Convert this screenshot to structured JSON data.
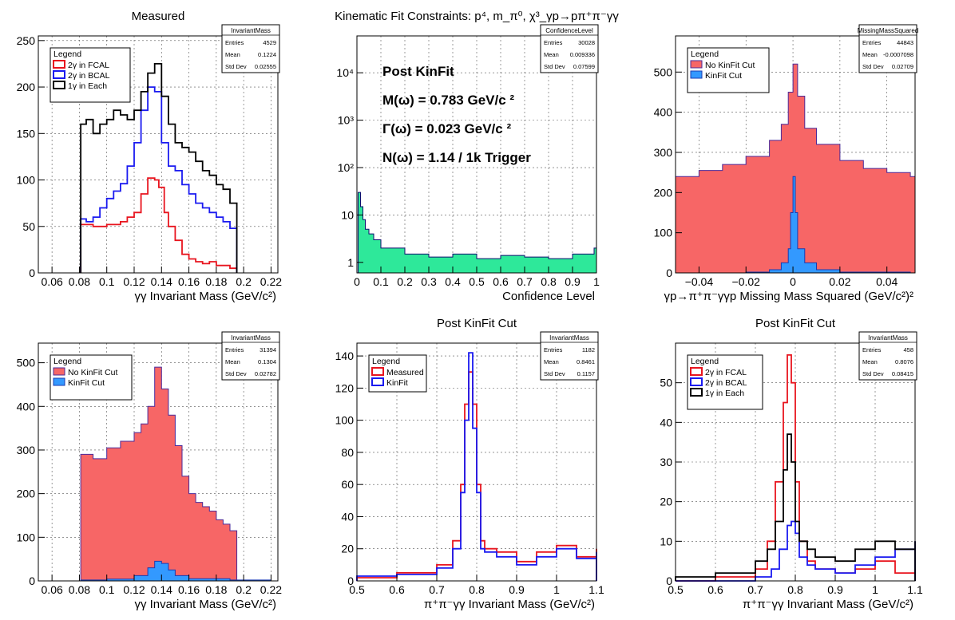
{
  "chart_data": [
    {
      "type": "histogram",
      "title": "Measured",
      "xlabel": "γγ Invariant Mass (GeV/c²)",
      "ylabel": "",
      "xlim": [
        0.05,
        0.225
      ],
      "ylim": [
        0,
        255
      ],
      "xticks": [
        0.06,
        0.08,
        0.1,
        0.12,
        0.14,
        0.16,
        0.18,
        0.2,
        0.22
      ],
      "xticklabels": [
        "0.06",
        "0.08",
        "0.1",
        "0.12",
        "0.14",
        "0.16",
        "0.18",
        "0.2",
        "0.22"
      ],
      "yticks": [
        0,
        50,
        100,
        150,
        200,
        250
      ],
      "grid": true,
      "legend": {
        "title": "Legend",
        "position": "top-left"
      },
      "stats": {
        "name": "InvariantMass",
        "rows": [
          [
            "Entries",
            "4529"
          ],
          [
            "Mean",
            "0.1224"
          ],
          [
            "Std Dev",
            "0.02555"
          ]
        ]
      },
      "series": [
        {
          "name": "2γ in FCAL",
          "color": "#e8141e",
          "fill": "none",
          "x": [
            0.081,
            0.09,
            0.1,
            0.11,
            0.115,
            0.12,
            0.125,
            0.13,
            0.135,
            0.138,
            0.142,
            0.145,
            0.15,
            0.155,
            0.16,
            0.165,
            0.17,
            0.175,
            0.18,
            0.185,
            0.19
          ],
          "y": [
            52,
            50,
            52,
            55,
            60,
            65,
            85,
            102,
            100,
            92,
            65,
            50,
            35,
            20,
            15,
            12,
            10,
            12,
            8,
            8,
            5
          ]
        },
        {
          "name": "2γ in BCAL",
          "color": "#1a1af0",
          "fill": "none",
          "x": [
            0.081,
            0.085,
            0.09,
            0.095,
            0.1,
            0.105,
            0.11,
            0.115,
            0.12,
            0.125,
            0.13,
            0.135,
            0.14,
            0.145,
            0.15,
            0.155,
            0.16,
            0.165,
            0.17,
            0.175,
            0.18,
            0.185,
            0.19
          ],
          "y": [
            58,
            55,
            60,
            70,
            80,
            88,
            96,
            115,
            140,
            175,
            200,
            195,
            140,
            115,
            110,
            95,
            85,
            75,
            70,
            65,
            60,
            55,
            48
          ]
        },
        {
          "name": "1γ in Each",
          "color": "#000000",
          "fill": "none",
          "x": [
            0.081,
            0.085,
            0.09,
            0.095,
            0.1,
            0.105,
            0.11,
            0.115,
            0.12,
            0.125,
            0.13,
            0.135,
            0.14,
            0.145,
            0.15,
            0.155,
            0.16,
            0.165,
            0.17,
            0.175,
            0.18,
            0.185,
            0.19
          ],
          "y": [
            160,
            165,
            150,
            160,
            165,
            175,
            170,
            165,
            175,
            195,
            215,
            225,
            190,
            160,
            140,
            135,
            130,
            120,
            110,
            105,
            95,
            90,
            75
          ]
        }
      ]
    },
    {
      "type": "histogram",
      "title": "Kinematic Fit Constraints: p⁴, m_π⁰, χ³_γp→pπ⁺π⁻γγ",
      "xlabel": "Confidence Level",
      "ylabel": "",
      "xlim": [
        0,
        1
      ],
      "ylim": [
        0.6,
        60000
      ],
      "log_y": true,
      "xticks": [
        0,
        0.1,
        0.2,
        0.3,
        0.4,
        0.5,
        0.6,
        0.7,
        0.8,
        0.9,
        1
      ],
      "xticklabels": [
        "0",
        "0.1",
        "0.2",
        "0.3",
        "0.4",
        "0.5",
        "0.6",
        "0.7",
        "0.8",
        "0.9",
        "1"
      ],
      "yticks": [
        1,
        10,
        100,
        1000,
        10000
      ],
      "yticklabels": [
        "1",
        "10",
        "10²",
        "10³",
        "10⁴"
      ],
      "grid": true,
      "stats": {
        "name": "ConfidenceLevel",
        "rows": [
          [
            "Entries",
            "30028"
          ],
          [
            "Mean",
            "0.009336"
          ],
          [
            "Std Dev",
            "0.07599"
          ]
        ]
      },
      "annotations": [
        "Post KinFit",
        "M(ω) = 0.783 GeV/c ²",
        "Γ(ω) = 0.023 GeV/c ²",
        "N(ω) = 1.14 / 1k Trigger"
      ],
      "series": [
        {
          "name": "",
          "color": "#0d0d6e",
          "fill": "#2ee89a",
          "x": [
            0.005,
            0.015,
            0.025,
            0.035,
            0.05,
            0.07,
            0.1,
            0.15,
            0.2,
            0.3,
            0.4,
            0.5,
            0.6,
            0.7,
            0.8,
            0.9,
            0.99
          ],
          "y": [
            30,
            15,
            8,
            5,
            4,
            3,
            2,
            2,
            1.5,
            1.3,
            1.5,
            1.2,
            1.4,
            1.3,
            1.2,
            1.5,
            2
          ]
        }
      ]
    },
    {
      "type": "histogram",
      "title": "",
      "xlabel": "γp→π⁺π⁻γγp Missing Mass Squared (GeV/c²)²",
      "ylabel": "",
      "xlim": [
        -0.05,
        0.052
      ],
      "ylim": [
        0,
        590
      ],
      "xticks": [
        -0.04,
        -0.02,
        0,
        0.02,
        0.04
      ],
      "xticklabels": [
        "−0.04",
        "−0.02",
        "0",
        "0.02",
        "0.04"
      ],
      "yticks": [
        0,
        100,
        200,
        300,
        400,
        500
      ],
      "grid": true,
      "legend": {
        "title": "Legend",
        "position": "top-left"
      },
      "stats": {
        "name": "MissingMassSquared",
        "rows": [
          [
            "Entries",
            "44843"
          ],
          [
            "Mean",
            "-0.0007098"
          ],
          [
            "Std Dev",
            "0.02709"
          ]
        ]
      },
      "series": [
        {
          "name": "No KinFit Cut",
          "color": "#4a2a9a",
          "fill": "#f76666",
          "x": [
            -0.05,
            -0.04,
            -0.03,
            -0.02,
            -0.01,
            -0.005,
            -0.002,
            0,
            0.002,
            0.005,
            0.01,
            0.02,
            0.03,
            0.04,
            0.05
          ],
          "y": [
            240,
            255,
            270,
            290,
            330,
            370,
            450,
            520,
            440,
            360,
            320,
            280,
            260,
            250,
            240
          ]
        },
        {
          "name": "KinFit Cut",
          "color": "#1a3ab0",
          "fill": "#3399ff",
          "x": [
            -0.05,
            -0.02,
            -0.01,
            -0.005,
            -0.002,
            -0.001,
            0,
            0.001,
            0.002,
            0.005,
            0.01,
            0.02,
            0.05
          ],
          "y": [
            0,
            2,
            8,
            25,
            60,
            150,
            240,
            150,
            60,
            25,
            8,
            2,
            0
          ]
        }
      ]
    },
    {
      "type": "histogram",
      "title": "",
      "xlabel": "γγ Invariant Mass (GeV/c²)",
      "ylabel": "",
      "xlim": [
        0.05,
        0.225
      ],
      "ylim": [
        0,
        545
      ],
      "xticks": [
        0.06,
        0.08,
        0.1,
        0.12,
        0.14,
        0.16,
        0.18,
        0.2,
        0.22
      ],
      "xticklabels": [
        "0.06",
        "0.08",
        "0.1",
        "0.12",
        "0.14",
        "0.16",
        "0.18",
        "0.2",
        "0.22"
      ],
      "yticks": [
        0,
        100,
        200,
        300,
        400,
        500
      ],
      "grid": true,
      "legend": {
        "title": "Legend",
        "position": "top-left"
      },
      "stats": {
        "name": "InvariantMass",
        "rows": [
          [
            "Entries",
            "31394"
          ],
          [
            "Mean",
            "0.1304"
          ],
          [
            "Std Dev",
            "0.02782"
          ]
        ]
      },
      "series": [
        {
          "name": "No KinFit Cut",
          "color": "#4a2a9a",
          "fill": "#f76666",
          "x": [
            0.081,
            0.09,
            0.1,
            0.11,
            0.12,
            0.125,
            0.13,
            0.135,
            0.14,
            0.145,
            0.15,
            0.155,
            0.16,
            0.165,
            0.17,
            0.175,
            0.18,
            0.185,
            0.19
          ],
          "y": [
            290,
            280,
            305,
            320,
            340,
            360,
            400,
            490,
            440,
            380,
            310,
            240,
            200,
            180,
            170,
            160,
            140,
            130,
            115
          ]
        },
        {
          "name": "KinFit Cut",
          "color": "#1a3ab0",
          "fill": "#3399ff",
          "x": [
            0.081,
            0.1,
            0.12,
            0.13,
            0.135,
            0.14,
            0.145,
            0.15,
            0.16,
            0.19
          ],
          "y": [
            2,
            4,
            12,
            30,
            45,
            40,
            25,
            12,
            5,
            2
          ]
        }
      ]
    },
    {
      "type": "histogram",
      "title": "Post KinFit Cut",
      "xlabel": "π⁺π⁻γγ Invariant Mass (GeV/c²)",
      "ylabel": "",
      "xlim": [
        0.5,
        1.1
      ],
      "ylim": [
        0,
        148
      ],
      "xticks": [
        0.5,
        0.6,
        0.7,
        0.8,
        0.9,
        1,
        1.1
      ],
      "xticklabels": [
        "0.5",
        "0.6",
        "0.7",
        "0.8",
        "0.9",
        "1",
        "1.1"
      ],
      "yticks": [
        0,
        20,
        40,
        60,
        80,
        100,
        120,
        140
      ],
      "grid": true,
      "legend": {
        "title": "Legend",
        "position": "top-left"
      },
      "stats": {
        "name": "InvariantMass",
        "rows": [
          [
            "Entries",
            "1182"
          ],
          [
            "Mean",
            "0.8461"
          ],
          [
            "Std Dev",
            "0.1157"
          ]
        ]
      },
      "series": [
        {
          "name": "Measured",
          "color": "#e8141e",
          "fill": "none",
          "x": [
            0.5,
            0.6,
            0.7,
            0.74,
            0.76,
            0.77,
            0.78,
            0.79,
            0.8,
            0.81,
            0.82,
            0.85,
            0.9,
            0.95,
            1.0,
            1.05,
            1.1
          ],
          "y": [
            2,
            5,
            10,
            25,
            60,
            110,
            130,
            110,
            60,
            25,
            20,
            18,
            12,
            18,
            22,
            15,
            20
          ]
        },
        {
          "name": "KinFit",
          "color": "#1a1af0",
          "fill": "none",
          "x": [
            0.5,
            0.6,
            0.7,
            0.74,
            0.76,
            0.77,
            0.78,
            0.79,
            0.8,
            0.81,
            0.82,
            0.85,
            0.9,
            0.95,
            1.0,
            1.05,
            1.1
          ],
          "y": [
            3,
            4,
            8,
            20,
            55,
            100,
            142,
            95,
            55,
            20,
            18,
            15,
            10,
            15,
            20,
            14,
            18
          ]
        }
      ]
    },
    {
      "type": "histogram",
      "title": "Post KinFit Cut",
      "xlabel": "π⁺π⁻γγ Invariant Mass (GeV/c²)",
      "ylabel": "",
      "xlim": [
        0.5,
        1.1
      ],
      "ylim": [
        0,
        60
      ],
      "xticks": [
        0.5,
        0.6,
        0.7,
        0.8,
        0.9,
        1,
        1.1
      ],
      "xticklabels": [
        "0.5",
        "0.6",
        "0.7",
        "0.8",
        "0.9",
        "1",
        "1.1"
      ],
      "yticks": [
        0,
        10,
        20,
        30,
        40,
        50
      ],
      "grid": true,
      "legend": {
        "title": "Legend",
        "position": "top-left"
      },
      "stats": {
        "name": "InvariantMass",
        "rows": [
          [
            "Entries",
            "458"
          ],
          [
            "Mean",
            "0.8076"
          ],
          [
            "Std Dev",
            "0.08415"
          ]
        ]
      },
      "series": [
        {
          "name": "2γ in FCAL",
          "color": "#e8141e",
          "fill": "none",
          "x": [
            0.5,
            0.6,
            0.7,
            0.73,
            0.75,
            0.77,
            0.78,
            0.79,
            0.8,
            0.81,
            0.83,
            0.85,
            0.9,
            0.95,
            1.0,
            1.05,
            1.1
          ],
          "y": [
            0,
            1,
            3,
            10,
            25,
            45,
            57,
            50,
            25,
            10,
            5,
            3,
            2,
            3,
            5,
            2,
            3
          ]
        },
        {
          "name": "2γ in BCAL",
          "color": "#1a1af0",
          "fill": "none",
          "x": [
            0.5,
            0.6,
            0.7,
            0.74,
            0.76,
            0.78,
            0.79,
            0.8,
            0.81,
            0.83,
            0.85,
            0.9,
            0.95,
            1.0,
            1.05,
            1.1
          ],
          "y": [
            0,
            0,
            1,
            3,
            8,
            14,
            15,
            12,
            6,
            4,
            3,
            2,
            4,
            6,
            8,
            10
          ]
        },
        {
          "name": "1γ in Each",
          "color": "#000000",
          "fill": "none",
          "x": [
            0.5,
            0.6,
            0.7,
            0.73,
            0.75,
            0.77,
            0.78,
            0.79,
            0.8,
            0.81,
            0.83,
            0.85,
            0.9,
            0.95,
            1.0,
            1.05,
            1.1
          ],
          "y": [
            1,
            2,
            5,
            8,
            15,
            28,
            37,
            30,
            15,
            10,
            8,
            6,
            5,
            8,
            10,
            8,
            10
          ]
        }
      ]
    }
  ]
}
